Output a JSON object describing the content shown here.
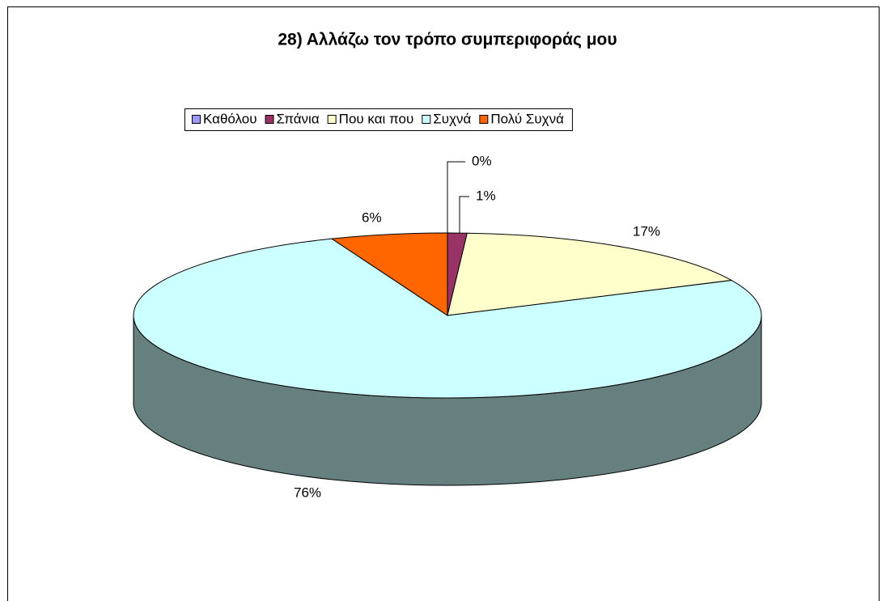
{
  "chart_data": {
    "type": "pie",
    "title": "28)  Αλλάζω τον τρόπο συμπεριφοράς μου",
    "categories": [
      "Καθόλου",
      "Σπάνια",
      "Που και που",
      "Συχνά",
      "Πολύ Συχνά"
    ],
    "values": [
      0,
      1,
      17,
      76,
      6
    ],
    "value_labels": [
      "0%",
      "1%",
      "17%",
      "76%",
      "6%"
    ],
    "colors": [
      "#9999ff",
      "#993366",
      "#ffffcc",
      "#ccffff",
      "#ff6600"
    ],
    "legend": "top"
  }
}
